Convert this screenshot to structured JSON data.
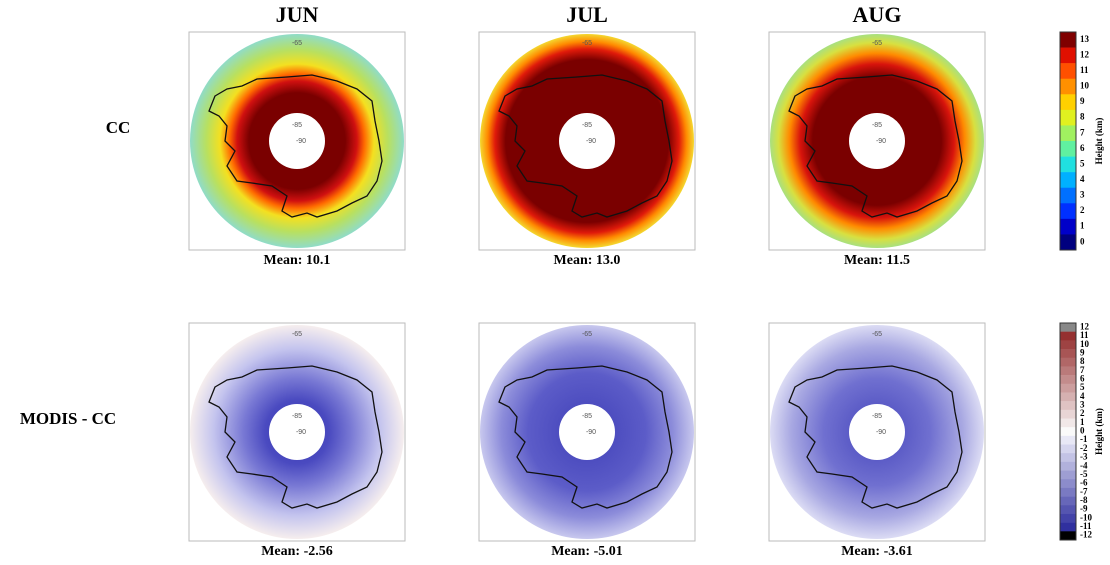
{
  "columns": [
    "JUN",
    "JUL",
    "AUG"
  ],
  "rows": [
    {
      "label": "CC",
      "means": [
        "Mean: 10.1",
        "Mean: 13.0",
        "Mean: 11.5"
      ]
    },
    {
      "label": "MODIS - CC",
      "means": [
        "Mean: -2.56",
        "Mean: -5.01",
        "Mean: -3.61"
      ]
    }
  ],
  "map_labels": {
    "outer": "-65",
    "inner": "-85",
    "pole": "-90"
  },
  "colorbars": [
    {
      "title": "Height (km)",
      "ticks": [
        "13",
        "12",
        "11",
        "10",
        "9",
        "8",
        "7",
        "6",
        "5",
        "4",
        "3",
        "2",
        "1",
        "0"
      ]
    },
    {
      "title": "Height (km)",
      "ticks": [
        "12",
        "11",
        "10",
        "9",
        "8",
        "7",
        "6",
        "5",
        "4",
        "3",
        "2",
        "1",
        "0",
        "-1",
        "-2",
        "-3",
        "-4",
        "-5",
        "-6",
        "-7",
        "-8",
        "-9",
        "-10",
        "-11",
        "-12"
      ]
    }
  ]
}
